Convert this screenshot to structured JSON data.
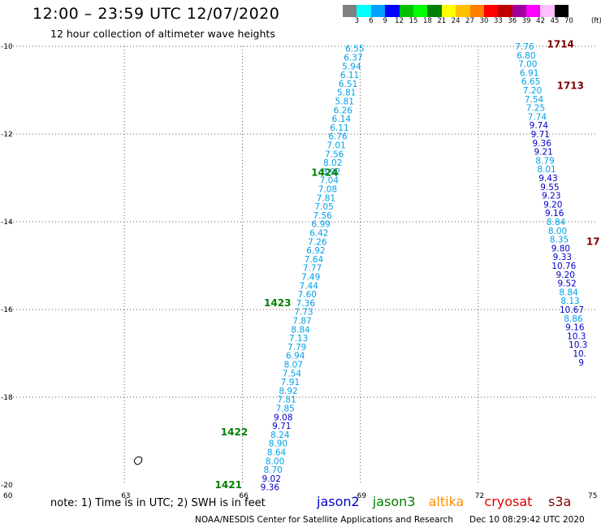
{
  "header": {
    "title": "12:00 – 23:59 UTC 12/07/2020",
    "subtitle": "12 hour collection of altimeter wave heights"
  },
  "colorbar": {
    "colors": [
      "#808080",
      "#00ffff",
      "#00a0ff",
      "#0000ff",
      "#00c000",
      "#00ff00",
      "#008000",
      "#ffff00",
      "#ffc000",
      "#ff8000",
      "#ff0000",
      "#c00000",
      "#a000a0",
      "#ff00ff",
      "#ffc0ff",
      "#000000"
    ],
    "labels": [
      "3",
      "6",
      "9",
      "12",
      "15",
      "18",
      "21",
      "24",
      "27",
      "30",
      "33",
      "36",
      "39",
      "42",
      "45",
      "70"
    ],
    "unit": "(ft)"
  },
  "map": {
    "lat_ticks": [
      "-10",
      "-12",
      "-14",
      "-16",
      "-18",
      "-20"
    ],
    "lon_ticks": [
      "60",
      "63",
      "66",
      "69",
      "72",
      "75"
    ],
    "satellite_colors": {
      "jason2": "#0000c8",
      "jason3": "#008000",
      "altika": "#ff8c00",
      "cryosat": "#e00000",
      "s3a": "#800000"
    },
    "tracks": [
      {
        "label_color": "#00a0e8",
        "points": [
          {
            "lon": 68.86,
            "lat": -10.05,
            "v": "6.55"
          },
          {
            "lon": 68.82,
            "lat": -10.25,
            "v": "6.37"
          },
          {
            "lon": 68.78,
            "lat": -10.45,
            "v": "5.94"
          },
          {
            "lon": 68.73,
            "lat": -10.65,
            "v": "6.11"
          },
          {
            "lon": 68.69,
            "lat": -10.85,
            "v": "6.51"
          },
          {
            "lon": 68.65,
            "lat": -11.05,
            "v": "5.81"
          },
          {
            "lon": 68.6,
            "lat": -11.25,
            "v": "5.81"
          },
          {
            "lon": 68.56,
            "lat": -11.45,
            "v": "6.26"
          },
          {
            "lon": 68.52,
            "lat": -11.65,
            "v": "6.14"
          },
          {
            "lon": 68.47,
            "lat": -11.85,
            "v": "6.11"
          },
          {
            "lon": 68.43,
            "lat": -12.05,
            "v": "6.76"
          },
          {
            "lon": 68.39,
            "lat": -12.25,
            "v": "7.01"
          },
          {
            "lon": 68.34,
            "lat": -12.45,
            "v": "7.56"
          },
          {
            "lon": 68.3,
            "lat": -12.65,
            "v": "8.02"
          },
          {
            "lon": 68.26,
            "lat": -12.85,
            "v": "6.92"
          },
          {
            "lon": 68.21,
            "lat": -13.05,
            "v": "7.04"
          },
          {
            "lon": 68.17,
            "lat": -13.25,
            "v": "7.08"
          },
          {
            "lon": 68.13,
            "lat": -13.45,
            "v": "7.81"
          },
          {
            "lon": 68.08,
            "lat": -13.65,
            "v": "7.05"
          },
          {
            "lon": 68.04,
            "lat": -13.85,
            "v": "7.56"
          },
          {
            "lon": 68.0,
            "lat": -14.05,
            "v": "6.99"
          },
          {
            "lon": 67.95,
            "lat": -14.25,
            "v": "6.42"
          },
          {
            "lon": 67.91,
            "lat": -14.45,
            "v": "7.26"
          },
          {
            "lon": 67.87,
            "lat": -14.65,
            "v": "6.92"
          },
          {
            "lon": 67.82,
            "lat": -14.85,
            "v": "7.64"
          },
          {
            "lon": 67.78,
            "lat": -15.05,
            "v": "7.77"
          },
          {
            "lon": 67.74,
            "lat": -15.25,
            "v": "7.49"
          },
          {
            "lon": 67.69,
            "lat": -15.45,
            "v": "7.44"
          },
          {
            "lon": 67.65,
            "lat": -15.65,
            "v": "7.60"
          },
          {
            "lon": 67.61,
            "lat": -15.85,
            "v": "7.36"
          },
          {
            "lon": 67.56,
            "lat": -16.05,
            "v": "7.73"
          },
          {
            "lon": 67.52,
            "lat": -16.25,
            "v": "7.87"
          },
          {
            "lon": 67.48,
            "lat": -16.45,
            "v": "8.84"
          },
          {
            "lon": 67.43,
            "lat": -16.65,
            "v": "7.13"
          },
          {
            "lon": 67.39,
            "lat": -16.85,
            "v": "7.79"
          },
          {
            "lon": 67.35,
            "lat": -17.05,
            "v": "6.94"
          },
          {
            "lon": 67.3,
            "lat": -17.25,
            "v": "8.07"
          },
          {
            "lon": 67.26,
            "lat": -17.45,
            "v": "7.54"
          },
          {
            "lon": 67.22,
            "lat": -17.65,
            "v": "7.91"
          },
          {
            "lon": 67.17,
            "lat": -17.85,
            "v": "8.92"
          },
          {
            "lon": 67.13,
            "lat": -18.05,
            "v": "7.81"
          },
          {
            "lon": 67.09,
            "lat": -18.25,
            "v": "7.85"
          },
          {
            "lon": 67.04,
            "lat": -18.45,
            "v": "9.08"
          },
          {
            "lon": 67.0,
            "lat": -18.65,
            "v": "9.71"
          },
          {
            "lon": 66.96,
            "lat": -18.85,
            "v": "8.24"
          },
          {
            "lon": 66.91,
            "lat": -19.05,
            "v": "8.90"
          },
          {
            "lon": 66.87,
            "lat": -19.25,
            "v": "8.64"
          },
          {
            "lon": 66.83,
            "lat": -19.45,
            "v": "8.00"
          },
          {
            "lon": 66.78,
            "lat": -19.65,
            "v": "8.70"
          },
          {
            "lon": 66.74,
            "lat": -19.85,
            "v": "9.02"
          },
          {
            "lon": 66.7,
            "lat": -20.05,
            "v": "9.36"
          }
        ],
        "time_labels": [
          {
            "lon": 67.75,
            "lat": -12.88,
            "t": "1424",
            "color": "#008000"
          },
          {
            "lon": 66.55,
            "lat": -15.85,
            "t": "1423",
            "color": "#008000"
          },
          {
            "lon": 65.45,
            "lat": -18.8,
            "t": "1422",
            "color": "#008000"
          },
          {
            "lon": 65.3,
            "lat": -20.0,
            "t": "1421",
            "color": "#008000"
          }
        ]
      },
      {
        "label_color": "#00a0e8",
        "points": [
          {
            "lon": 73.18,
            "lat": -10.0,
            "v": "7.76"
          },
          {
            "lon": 73.22,
            "lat": -10.2,
            "v": "6.80"
          },
          {
            "lon": 73.26,
            "lat": -10.4,
            "v": "7.00"
          },
          {
            "lon": 73.3,
            "lat": -10.6,
            "v": "6.91"
          },
          {
            "lon": 73.34,
            "lat": -10.8,
            "v": "6.65"
          },
          {
            "lon": 73.38,
            "lat": -11.0,
            "v": "7.20"
          },
          {
            "lon": 73.42,
            "lat": -11.2,
            "v": "7.54"
          },
          {
            "lon": 73.46,
            "lat": -11.4,
            "v": "7.25"
          },
          {
            "lon": 73.5,
            "lat": -11.6,
            "v": "7.74"
          },
          {
            "lon": 73.54,
            "lat": -11.8,
            "v": "9.74"
          },
          {
            "lon": 73.58,
            "lat": -12.0,
            "v": "9.71"
          },
          {
            "lon": 73.62,
            "lat": -12.2,
            "v": "9.36"
          },
          {
            "lon": 73.66,
            "lat": -12.4,
            "v": "9.21"
          },
          {
            "lon": 73.7,
            "lat": -12.6,
            "v": "8.79"
          },
          {
            "lon": 73.74,
            "lat": -12.8,
            "v": "8.01"
          },
          {
            "lon": 73.78,
            "lat": -13.0,
            "v": "9.43"
          },
          {
            "lon": 73.82,
            "lat": -13.2,
            "v": "9.55"
          },
          {
            "lon": 73.86,
            "lat": -13.4,
            "v": "9.23"
          },
          {
            "lon": 73.9,
            "lat": -13.6,
            "v": "9.20"
          },
          {
            "lon": 73.94,
            "lat": -13.8,
            "v": "9.16"
          },
          {
            "lon": 73.98,
            "lat": -14.0,
            "v": "8.84"
          },
          {
            "lon": 74.02,
            "lat": -14.2,
            "v": "8.00"
          },
          {
            "lon": 74.06,
            "lat": -14.4,
            "v": "8.35"
          },
          {
            "lon": 74.1,
            "lat": -14.6,
            "v": "9.80"
          },
          {
            "lon": 74.14,
            "lat": -14.8,
            "v": "9.33"
          },
          {
            "lon": 74.18,
            "lat": -15.0,
            "v": "10.76"
          },
          {
            "lon": 74.22,
            "lat": -15.2,
            "v": "9.20"
          },
          {
            "lon": 74.26,
            "lat": -15.4,
            "v": "9.52"
          },
          {
            "lon": 74.3,
            "lat": -15.6,
            "v": "8.84"
          },
          {
            "lon": 74.34,
            "lat": -15.8,
            "v": "8.13"
          },
          {
            "lon": 74.38,
            "lat": -16.0,
            "v": "10.67"
          },
          {
            "lon": 74.42,
            "lat": -16.2,
            "v": "8.86"
          },
          {
            "lon": 74.46,
            "lat": -16.4,
            "v": "9.16"
          },
          {
            "lon": 74.5,
            "lat": -16.6,
            "v": "10.3"
          },
          {
            "lon": 74.54,
            "lat": -16.8,
            "v": "10.3"
          },
          {
            "lon": 74.58,
            "lat": -17.0,
            "v": "10."
          },
          {
            "lon": 74.62,
            "lat": -17.2,
            "v": "9"
          }
        ],
        "time_labels": [
          {
            "lon": 73.75,
            "lat": -9.95,
            "t": "1714",
            "color": "#800000"
          },
          {
            "lon": 74.0,
            "lat": -10.9,
            "t": "1713",
            "color": "#800000"
          },
          {
            "lon": 74.75,
            "lat": -14.45,
            "t": "17",
            "color": "#800000"
          }
        ]
      }
    ],
    "island_marker": {
      "lon": 63.35,
      "lat": -19.45
    }
  },
  "note": "note: 1) Time is in UTC; 2) SWH is in feet",
  "legend": [
    {
      "name": "jason2",
      "color": "#0000c8"
    },
    {
      "name": "jason3",
      "color": "#008000"
    },
    {
      "name": "altika",
      "color": "#ff8c00"
    },
    {
      "name": "cryosat",
      "color": "#e00000"
    },
    {
      "name": "s3a",
      "color": "#800000"
    }
  ],
  "footer": {
    "credit": "NOAA/NESDIS Center for Satellite Applications and Research",
    "timestamp": "Dec 10 08:29:42 UTC 2020"
  }
}
